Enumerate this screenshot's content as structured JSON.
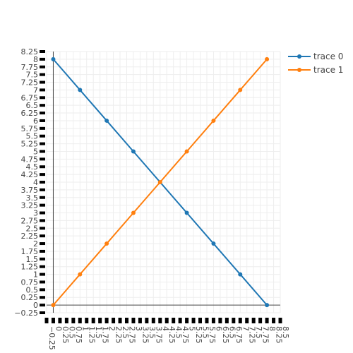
{
  "chart_data": {
    "type": "line",
    "title": "",
    "xlabel": "",
    "ylabel": "",
    "xlim": [
      -0.25,
      8.5
    ],
    "ylim": [
      -0.25,
      8.25
    ],
    "x_ticks": [
      "−0.25",
      "0",
      "0.25",
      "0.5",
      "0.75",
      "1",
      "1.25",
      "1.5",
      "1.75",
      "2",
      "2.25",
      "2.5",
      "2.75",
      "3",
      "3.25",
      "3.5",
      "3.75",
      "4",
      "4.25",
      "4.5",
      "4.75",
      "5",
      "5.25",
      "5.5",
      "5.75",
      "6",
      "6.25",
      "6.5",
      "6.75",
      "7",
      "7.25",
      "7.5",
      "7.75",
      "8",
      "8.25",
      "8.5"
    ],
    "y_ticks": [
      "−0.25",
      "0",
      "0.25",
      "0.5",
      "0.75",
      "1",
      "1.25",
      "1.5",
      "1.75",
      "2",
      "2.25",
      "2.5",
      "2.75",
      "3",
      "3.25",
      "3.5",
      "3.75",
      "4",
      "4.25",
      "4.5",
      "4.75",
      "5",
      "5.25",
      "5.5",
      "5.75",
      "6",
      "6.25",
      "6.5",
      "6.75",
      "7",
      "7.25",
      "7.5",
      "7.75",
      "8",
      "8.25"
    ],
    "grid": true,
    "legend_position": "top-right",
    "series": [
      {
        "name": "trace 0",
        "color": "#1f77b4",
        "x": [
          0,
          1,
          2,
          3,
          5,
          6,
          7,
          8
        ],
        "y": [
          8,
          7,
          6,
          5,
          3,
          2,
          1,
          0
        ]
      },
      {
        "name": "trace 1",
        "color": "#ff7f0e",
        "x": [
          0,
          1,
          2,
          3,
          4,
          5,
          6,
          7,
          8
        ],
        "y": [
          0,
          1,
          2,
          3,
          4,
          5,
          6,
          7,
          8
        ]
      }
    ]
  }
}
